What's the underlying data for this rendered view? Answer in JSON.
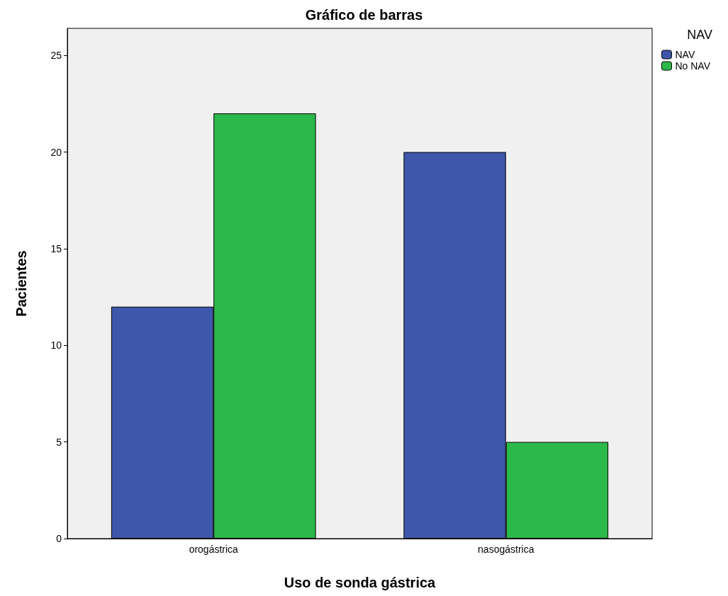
{
  "chart_data": {
    "type": "bar",
    "title": "Gráfico de barras",
    "xlabel": "Uso de sonda gástrica",
    "ylabel": "Pacientes",
    "legend_title": "NAV",
    "categories": [
      "orogástrica",
      "nasogástrica"
    ],
    "series": [
      {
        "name": "NAV",
        "color": "#3f57aa",
        "values": [
          12,
          20
        ]
      },
      {
        "name": "No NAV",
        "color": "#2db84a",
        "values": [
          22,
          5
        ]
      }
    ],
    "ylim": [
      0,
      26.4
    ],
    "yticks": [
      0,
      5,
      10,
      15,
      20,
      25
    ],
    "grid": false,
    "legend": "top right"
  }
}
